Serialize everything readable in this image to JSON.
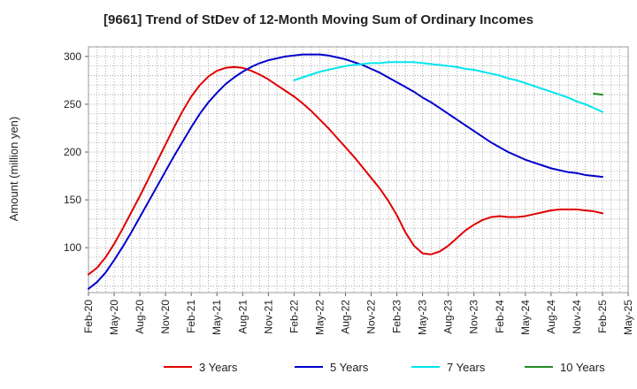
{
  "chart_data": {
    "type": "line",
    "title": "[9661]  Trend of StDev of 12-Month Moving Sum of Ordinary Incomes",
    "ylabel": "Amount (million yen)",
    "xlabel": "",
    "ylim": [
      53,
      310
    ],
    "yticks": [
      100,
      150,
      200,
      250,
      300
    ],
    "x_start": "Feb-20",
    "x_end": "May-25",
    "x_tick_labels": [
      "Feb-20",
      "May-20",
      "Aug-20",
      "Nov-20",
      "Feb-21",
      "May-21",
      "Aug-21",
      "Nov-21",
      "Feb-22",
      "May-22",
      "Aug-22",
      "Nov-22",
      "Feb-23",
      "May-23",
      "Aug-23",
      "Nov-23",
      "Feb-24",
      "May-24",
      "Aug-24",
      "Nov-24",
      "Feb-25",
      "May-25"
    ],
    "grid": true,
    "legend_position": "bottom",
    "series": [
      {
        "name": "3 Years",
        "color": "#e00000",
        "x": [
          "Feb-20",
          "Mar-20",
          "Apr-20",
          "May-20",
          "Jun-20",
          "Jul-20",
          "Aug-20",
          "Sep-20",
          "Oct-20",
          "Nov-20",
          "Dec-20",
          "Jan-21",
          "Feb-21",
          "Mar-21",
          "Apr-21",
          "May-21",
          "Jun-21",
          "Jul-21",
          "Aug-21",
          "Sep-21",
          "Oct-21",
          "Nov-21",
          "Dec-21",
          "Jan-22",
          "Feb-22",
          "Mar-22",
          "Apr-22",
          "May-22",
          "Jun-22",
          "Jul-22",
          "Aug-22",
          "Sep-22",
          "Oct-22",
          "Nov-22",
          "Dec-22",
          "Jan-23",
          "Feb-23",
          "Mar-23",
          "Apr-23",
          "May-23",
          "Jun-23",
          "Jul-23",
          "Aug-23",
          "Sep-23",
          "Oct-23",
          "Nov-23",
          "Dec-23",
          "Jan-24",
          "Feb-24",
          "Mar-24",
          "Apr-24",
          "May-24",
          "Jun-24",
          "Jul-24",
          "Aug-24",
          "Sep-24",
          "Oct-24",
          "Nov-24",
          "Dec-24",
          "Jan-25",
          "Feb-25"
        ],
        "values": [
          72,
          79,
          90,
          104,
          120,
          137,
          154,
          172,
          190,
          208,
          226,
          243,
          258,
          270,
          279,
          285,
          288,
          289,
          288,
          285,
          281,
          276,
          270,
          264,
          258,
          251,
          243,
          234,
          225,
          215,
          205,
          195,
          184,
          173,
          162,
          149,
          134,
          116,
          102,
          94,
          93,
          96,
          102,
          110,
          118,
          124,
          129,
          132,
          133,
          132,
          132,
          133,
          135,
          137,
          139,
          140,
          140,
          140,
          139,
          138,
          136
        ]
      },
      {
        "name": "5 Years",
        "color": "#0000cc",
        "x": [
          "Feb-20",
          "Mar-20",
          "Apr-20",
          "May-20",
          "Jun-20",
          "Jul-20",
          "Aug-20",
          "Sep-20",
          "Oct-20",
          "Nov-20",
          "Dec-20",
          "Jan-21",
          "Feb-21",
          "Mar-21",
          "Apr-21",
          "May-21",
          "Jun-21",
          "Jul-21",
          "Aug-21",
          "Sep-21",
          "Oct-21",
          "Nov-21",
          "Dec-21",
          "Jan-22",
          "Feb-22",
          "Mar-22",
          "Apr-22",
          "May-22",
          "Jun-22",
          "Jul-22",
          "Aug-22",
          "Sep-22",
          "Oct-22",
          "Nov-22",
          "Dec-22",
          "Jan-23",
          "Feb-23",
          "Mar-23",
          "Apr-23",
          "May-23",
          "Jun-23",
          "Jul-23",
          "Aug-23",
          "Sep-23",
          "Oct-23",
          "Nov-23",
          "Dec-23",
          "Jan-24",
          "Feb-24",
          "Mar-24",
          "Apr-24",
          "May-24",
          "Jun-24",
          "Jul-24",
          "Aug-24",
          "Sep-24",
          "Oct-24",
          "Nov-24",
          "Dec-24",
          "Jan-25",
          "Feb-25"
        ],
        "values": [
          57,
          64,
          74,
          87,
          101,
          116,
          132,
          148,
          164,
          180,
          196,
          211,
          226,
          240,
          252,
          262,
          271,
          278,
          284,
          289,
          293,
          296,
          298,
          300,
          301,
          302,
          302,
          302,
          301,
          299,
          297,
          294,
          291,
          287,
          283,
          278,
          273,
          268,
          263,
          257,
          252,
          246,
          240,
          234,
          228,
          222,
          216,
          210,
          205,
          200,
          196,
          192,
          189,
          186,
          183,
          181,
          179,
          178,
          176,
          175,
          174
        ]
      },
      {
        "name": "7 Years",
        "color": "#00e5ee",
        "x": [
          "Feb-22",
          "Mar-22",
          "Apr-22",
          "May-22",
          "Jun-22",
          "Jul-22",
          "Aug-22",
          "Sep-22",
          "Oct-22",
          "Nov-22",
          "Dec-22",
          "Jan-23",
          "Feb-23",
          "Mar-23",
          "Apr-23",
          "May-23",
          "Jun-23",
          "Jul-23",
          "Aug-23",
          "Sep-23",
          "Oct-23",
          "Nov-23",
          "Dec-23",
          "Jan-24",
          "Feb-24",
          "Mar-24",
          "Apr-24",
          "May-24",
          "Jun-24",
          "Jul-24",
          "Aug-24",
          "Sep-24",
          "Oct-24",
          "Nov-24",
          "Dec-24",
          "Jan-25",
          "Feb-25"
        ],
        "values": [
          275,
          278,
          281,
          284,
          286,
          288,
          290,
          291,
          292,
          293,
          293,
          294,
          294,
          294,
          294,
          293,
          292,
          291,
          290,
          289,
          287,
          286,
          284,
          282,
          280,
          277,
          275,
          272,
          269,
          266,
          263,
          260,
          257,
          253,
          250,
          246,
          242
        ]
      },
      {
        "name": "10 Years",
        "color": "#228b22",
        "x": [
          "Jan-25",
          "Feb-25"
        ],
        "values": [
          261,
          260
        ]
      }
    ]
  }
}
